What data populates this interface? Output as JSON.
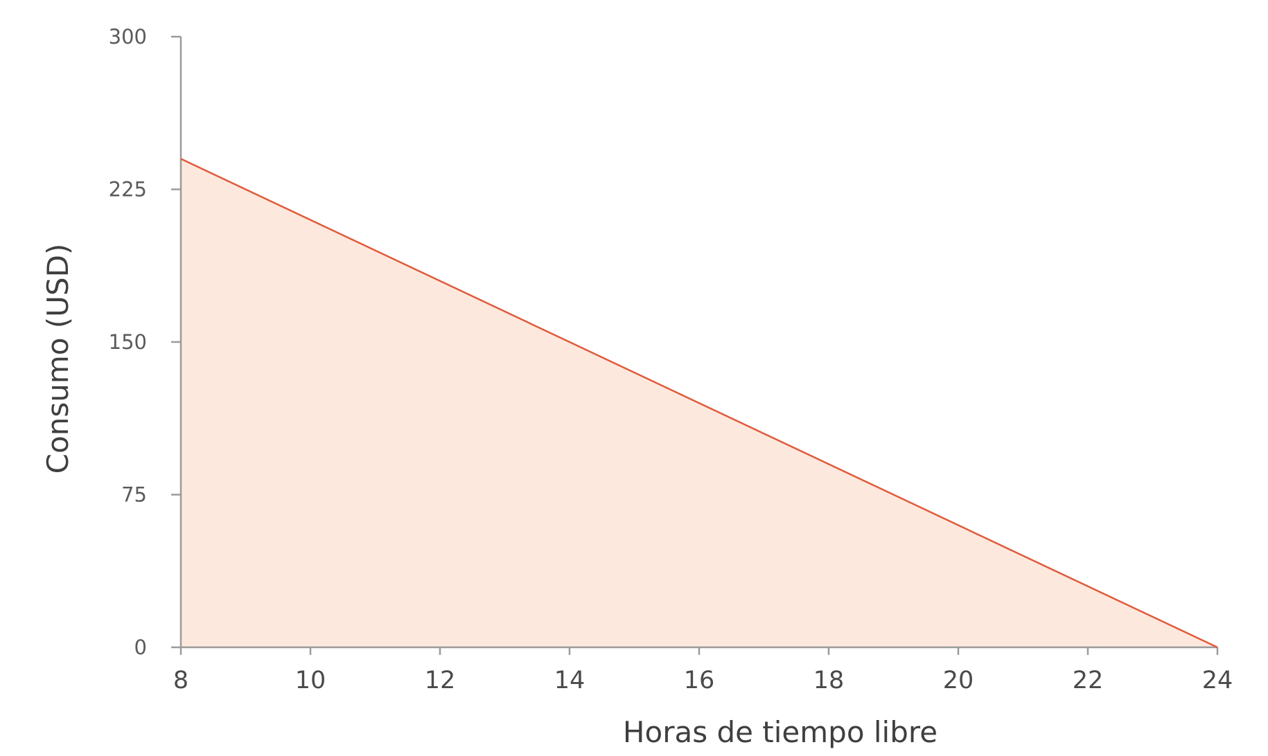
{
  "chart_data": {
    "type": "area",
    "title": "",
    "xlabel": "Horas de tiempo libre",
    "ylabel": "Consumo (USD)",
    "xlim": [
      8,
      24
    ],
    "ylim": [
      0,
      300
    ],
    "x_ticks": [
      8,
      10,
      12,
      14,
      16,
      18,
      20,
      22,
      24
    ],
    "y_ticks": [
      0,
      75,
      150,
      225,
      300
    ],
    "grid": false,
    "series": [
      {
        "x": [
          8,
          24
        ],
        "y": [
          240,
          0
        ]
      }
    ],
    "colors": {
      "line": "#e05a3a",
      "fill": "#fde8dd",
      "axis": "#9a9a9a"
    }
  }
}
